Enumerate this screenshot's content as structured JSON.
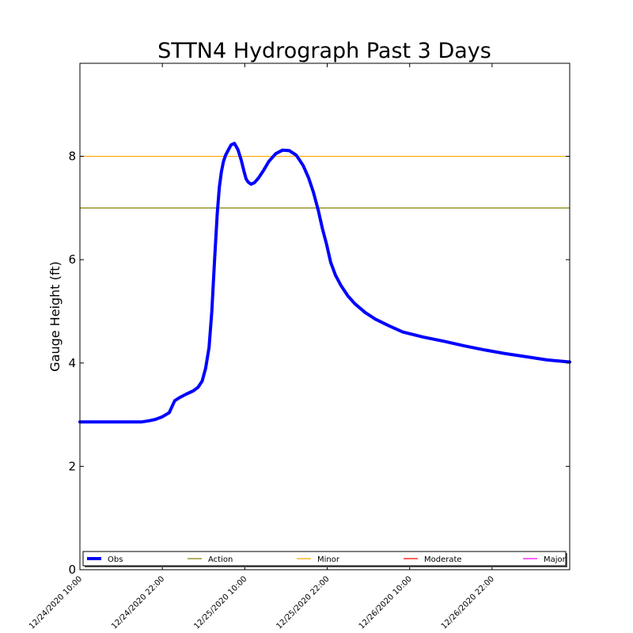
{
  "chart_data": {
    "type": "line",
    "title": "STTN4 Hydrograph Past 3 Days",
    "ylabel": "Gauge Height (ft)",
    "xlabel": "",
    "ylim": [
      0,
      9.8
    ],
    "yticks": [
      0,
      2,
      4,
      6,
      8
    ],
    "xlim_hours": [
      0,
      71.3
    ],
    "xticks": [
      {
        "label": "12/24/2020 10:00",
        "hour": 0
      },
      {
        "label": "12/24/2020 22:00",
        "hour": 12
      },
      {
        "label": "12/25/2020 10:00",
        "hour": 24
      },
      {
        "label": "12/25/2020 22:00",
        "hour": 36
      },
      {
        "label": "12/26/2020 10:00",
        "hour": 48
      },
      {
        "label": "12/26/2020 22:00",
        "hour": 60
      }
    ],
    "legend": {
      "placement": "lower-center",
      "entries": [
        {
          "name": "Obs",
          "color": "#0000ff"
        },
        {
          "name": "Action",
          "color": "#808000"
        },
        {
          "name": "Minor",
          "color": "#ffa500"
        },
        {
          "name": "Moderate",
          "color": "#ff0000"
        },
        {
          "name": "Major",
          "color": "#ff00ff"
        }
      ]
    },
    "thresholds": [
      {
        "name": "Action",
        "value": 7.0,
        "color": "#808000"
      },
      {
        "name": "Minor",
        "value": 8.0,
        "color": "#ffa500"
      }
    ],
    "series": [
      {
        "name": "Obs",
        "color": "#0000ff",
        "x": [
          0,
          2,
          4,
          6,
          8,
          9,
          10,
          11,
          12,
          13,
          13.8,
          14.5,
          15.5,
          16.5,
          17.2,
          17.8,
          18.3,
          18.8,
          19.2,
          19.6,
          20.0,
          20.3,
          20.6,
          20.9,
          21.2,
          21.6,
          22.0,
          22.5,
          23.0,
          23.5,
          23.9,
          24.2,
          24.5,
          24.9,
          25.4,
          26.0,
          26.7,
          27.5,
          28.5,
          29.5,
          30.5,
          31.5,
          32.5,
          33.3,
          34.0,
          34.7,
          35.3,
          35.9,
          36.5,
          37.2,
          38.0,
          39.0,
          40.0,
          41.5,
          43.0,
          45.0,
          47.0,
          50.0,
          53.0,
          56.0,
          59.0,
          62.0,
          65.0,
          68.0,
          71.3
        ],
        "values": [
          2.86,
          2.86,
          2.86,
          2.86,
          2.86,
          2.86,
          2.88,
          2.91,
          2.96,
          3.04,
          3.27,
          3.33,
          3.4,
          3.46,
          3.53,
          3.65,
          3.9,
          4.3,
          5.0,
          6.0,
          6.9,
          7.4,
          7.7,
          7.9,
          8.02,
          8.12,
          8.22,
          8.25,
          8.13,
          7.92,
          7.7,
          7.56,
          7.5,
          7.46,
          7.49,
          7.58,
          7.72,
          7.9,
          8.05,
          8.12,
          8.11,
          8.02,
          7.82,
          7.58,
          7.3,
          6.95,
          6.6,
          6.3,
          5.95,
          5.7,
          5.5,
          5.3,
          5.15,
          4.98,
          4.85,
          4.72,
          4.6,
          4.5,
          4.42,
          4.33,
          4.25,
          4.18,
          4.12,
          4.06,
          4.02
        ]
      }
    ]
  }
}
